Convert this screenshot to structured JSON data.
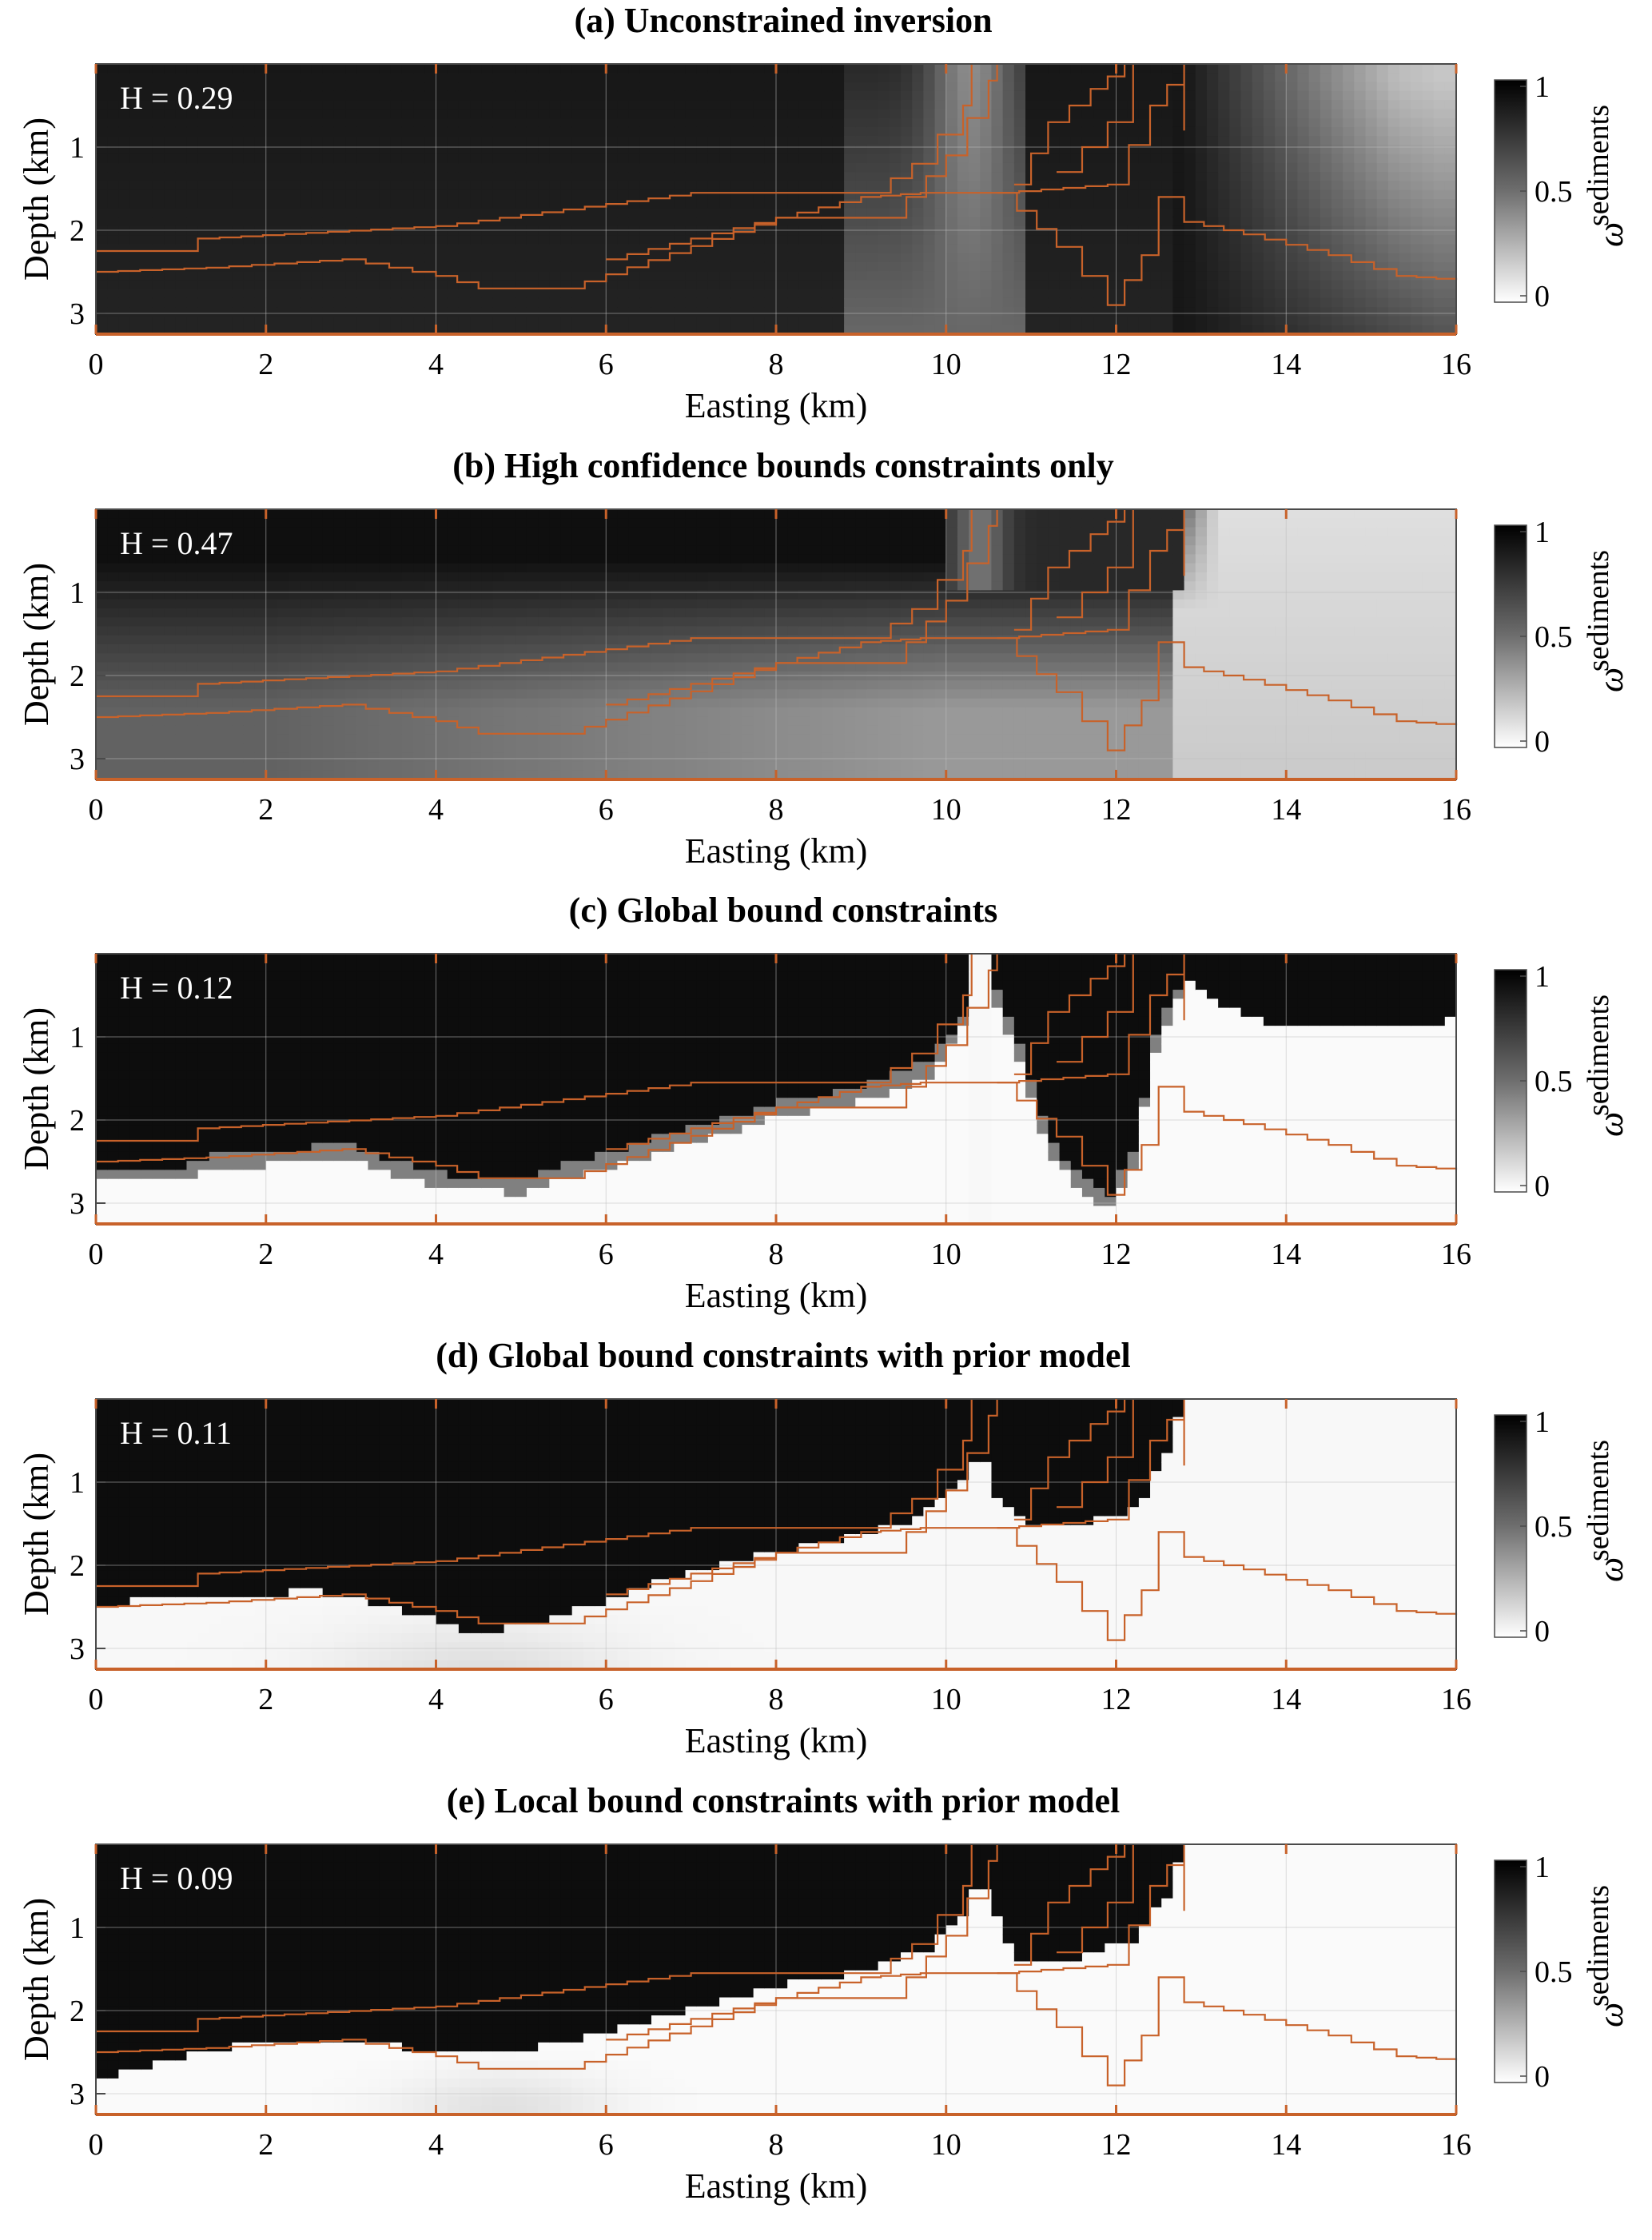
{
  "chart_data": [
    {
      "type": "heatmap",
      "title": "(a) Unconstrained inversion",
      "xlabel": "Easting (km)",
      "ylabel": "Depth (km)",
      "xlim": [
        0,
        16
      ],
      "ylim": [
        3.25,
        0
      ],
      "xticks": [
        "0",
        "2",
        "4",
        "6",
        "8",
        "10",
        "12",
        "14",
        "16"
      ],
      "yticks": [
        "1",
        "2",
        "3"
      ],
      "annotation": "H = 0.29",
      "colorbar": {
        "label": "ω",
        "sup": "sediments",
        "ticks": [
          "1",
          "0.5",
          "0"
        ],
        "range": [
          0,
          1
        ]
      },
      "variant": "a",
      "boundary_color": "#c8622a",
      "grid": true
    },
    {
      "type": "heatmap",
      "title": "(b) High confidence bounds constraints only",
      "xlabel": "Easting (km)",
      "ylabel": "Depth (km)",
      "xlim": [
        0,
        16
      ],
      "ylim": [
        3.25,
        0
      ],
      "xticks": [
        "0",
        "2",
        "4",
        "6",
        "8",
        "10",
        "12",
        "14",
        "16"
      ],
      "yticks": [
        "1",
        "2",
        "3"
      ],
      "annotation": "H = 0.47",
      "colorbar": {
        "label": "ω",
        "sup": "sediments",
        "ticks": [
          "1",
          "0.5",
          "0"
        ],
        "range": [
          0,
          1
        ]
      },
      "variant": "b",
      "boundary_color": "#c8622a",
      "grid": true
    },
    {
      "type": "heatmap",
      "title": "(c) Global bound constraints",
      "xlabel": "Easting (km)",
      "ylabel": "Depth (km)",
      "xlim": [
        0,
        16
      ],
      "ylim": [
        3.25,
        0
      ],
      "xticks": [
        "0",
        "2",
        "4",
        "6",
        "8",
        "10",
        "12",
        "14",
        "16"
      ],
      "yticks": [
        "1",
        "2",
        "3"
      ],
      "annotation": "H = 0.12",
      "colorbar": {
        "label": "ω",
        "sup": "sediments",
        "ticks": [
          "1",
          "0.5",
          "0"
        ],
        "range": [
          0,
          1
        ]
      },
      "variant": "c",
      "boundary_color": "#c8622a",
      "grid": true
    },
    {
      "type": "heatmap",
      "title": "(d) Global bound constraints with prior model",
      "xlabel": "Easting (km)",
      "ylabel": "Depth (km)",
      "xlim": [
        0,
        16
      ],
      "ylim": [
        3.25,
        0
      ],
      "xticks": [
        "0",
        "2",
        "4",
        "6",
        "8",
        "10",
        "12",
        "14",
        "16"
      ],
      "yticks": [
        "1",
        "2",
        "3"
      ],
      "annotation": "H = 0.11",
      "colorbar": {
        "label": "ω",
        "sup": "sediments",
        "ticks": [
          "1",
          "0.5",
          "0"
        ],
        "range": [
          0,
          1
        ]
      },
      "variant": "d",
      "boundary_color": "#c8622a",
      "grid": true
    },
    {
      "type": "heatmap",
      "title": "(e) Local bound constraints with prior model",
      "xlabel": "Easting (km)",
      "ylabel": "Depth (km)",
      "xlim": [
        0,
        16
      ],
      "ylim": [
        3.25,
        0
      ],
      "xticks": [
        "0",
        "2",
        "4",
        "6",
        "8",
        "10",
        "12",
        "14",
        "16"
      ],
      "yticks": [
        "1",
        "2",
        "3"
      ],
      "annotation": "H = 0.09",
      "colorbar": {
        "label": "ω",
        "sup": "sediments",
        "ticks": [
          "1",
          "0.5",
          "0"
        ],
        "range": [
          0,
          1
        ]
      },
      "variant": "e",
      "boundary_color": "#c8622a",
      "grid": true
    }
  ]
}
